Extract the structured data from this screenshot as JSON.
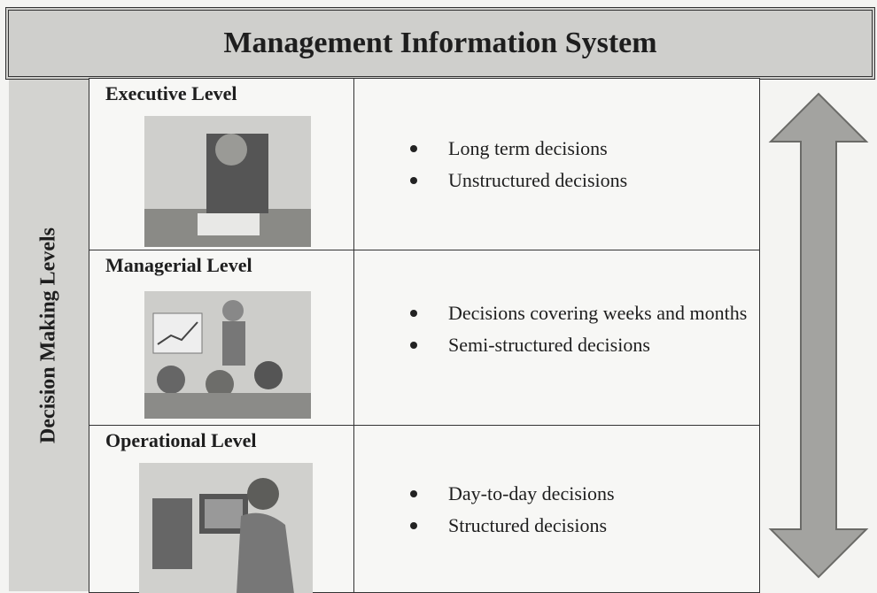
{
  "header": {
    "title": "Management Information System"
  },
  "side_label": "Decision Making Levels",
  "levels": [
    {
      "title": "Executive Level",
      "bullets": [
        "Long term decisions",
        "Unstructured decisions"
      ]
    },
    {
      "title": "Managerial Level",
      "bullets": [
        "Decisions covering weeks and months",
        "Semi-structured decisions"
      ]
    },
    {
      "title": "Operational Level",
      "bullets": [
        "Day-to-day decisions",
        "Structured decisions"
      ]
    }
  ]
}
